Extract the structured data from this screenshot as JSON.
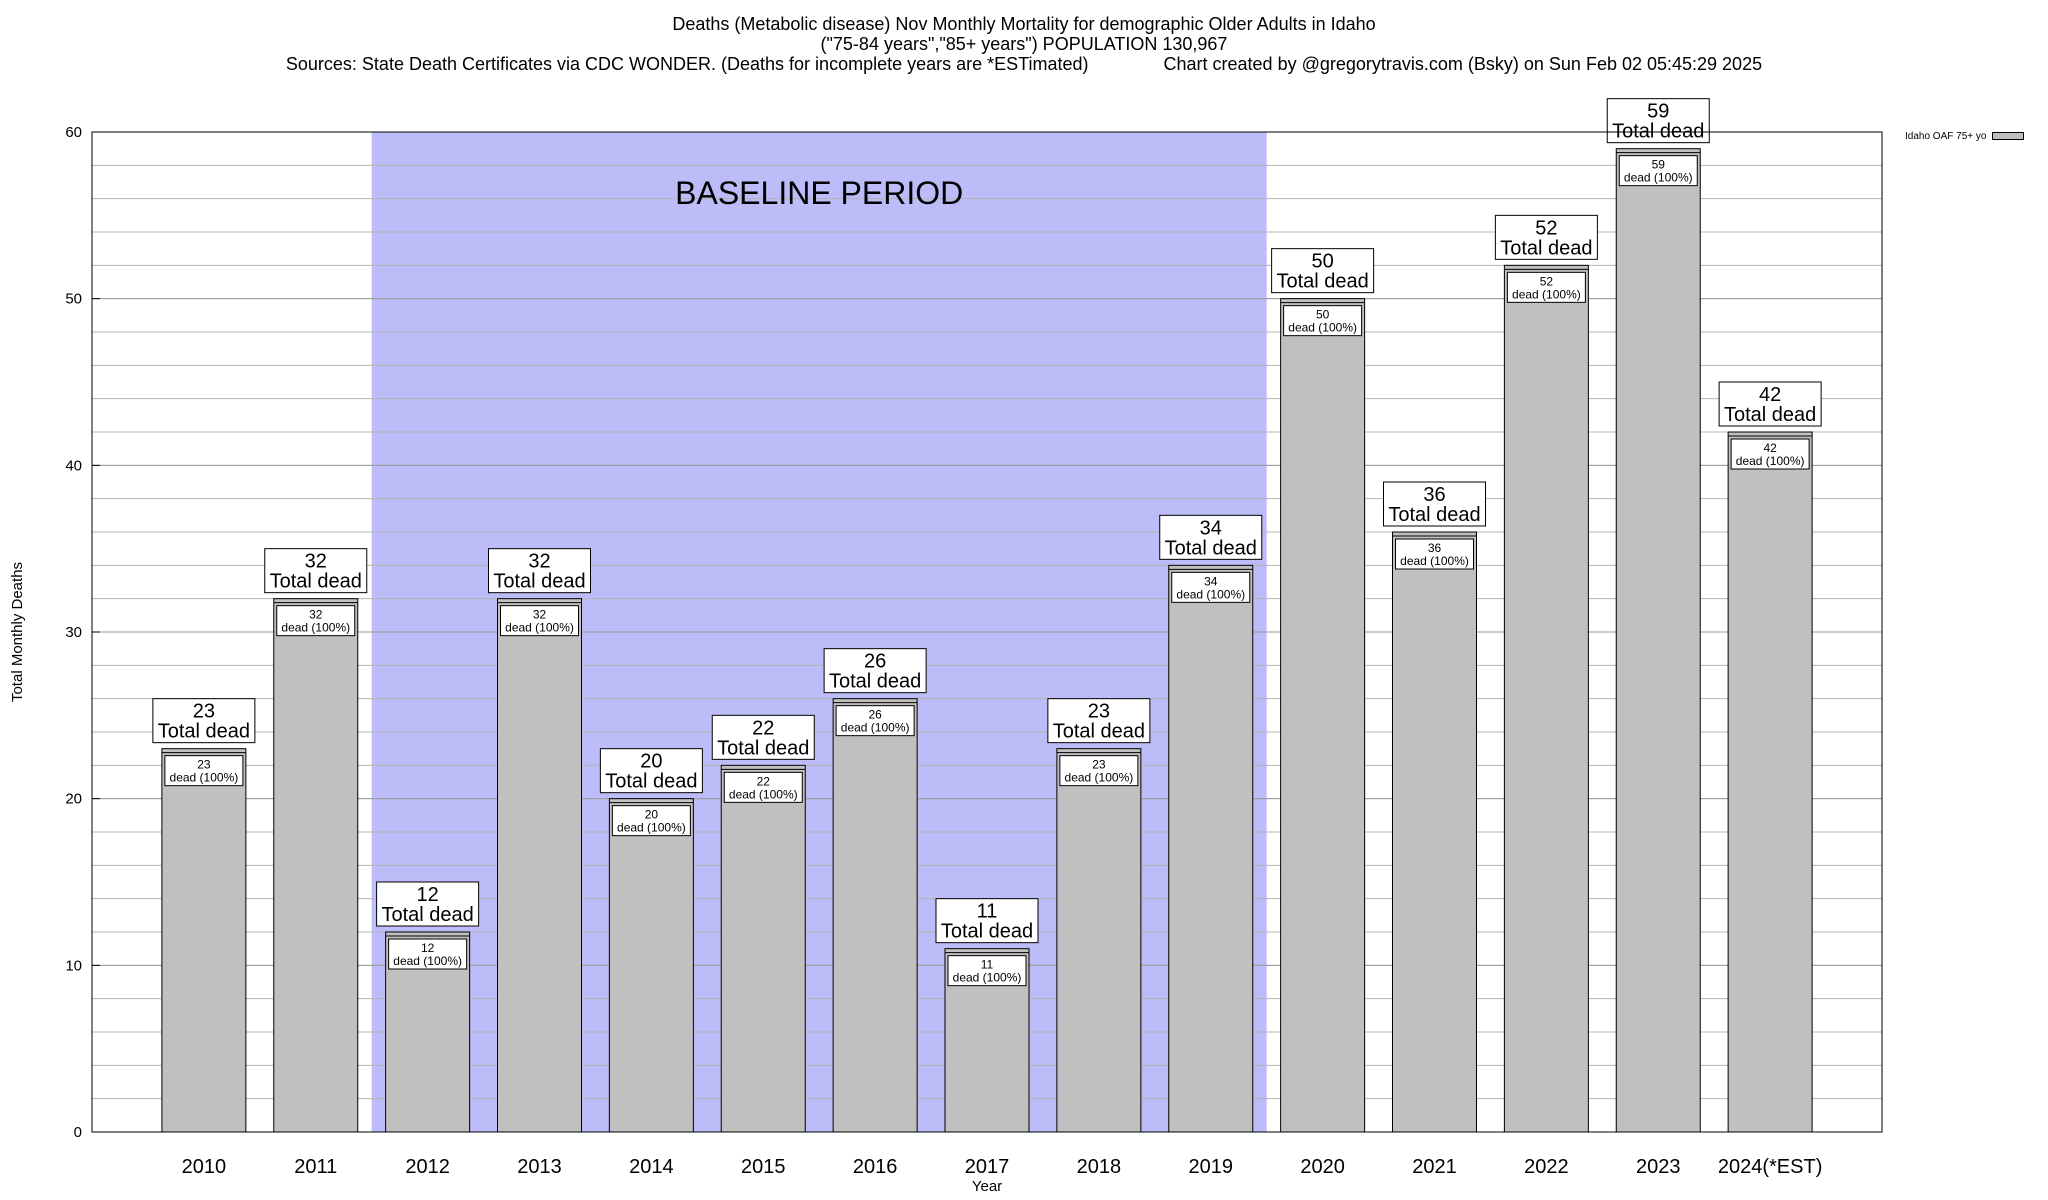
{
  "title": {
    "line1": "Deaths (Metabolic disease) Nov Monthly Mortality for demographic Older Adults in Idaho",
    "line2": "(\"75-84 years\",\"85+ years\") POPULATION 130,967",
    "line3": "Sources: State Death Certificates via CDC WONDER. (Deaths for incomplete years are *ESTimated)               Chart created by @gregorytravis.com (Bsky) on Sun Feb 02 05:45:29 2025"
  },
  "legend": {
    "label": "Idaho OAF 75+ yo"
  },
  "colors": {
    "bar": "#c0c0c0",
    "baseline": "#bcbcf8",
    "grid": "#b4b4b4"
  },
  "chart_data": {
    "type": "bar",
    "categories": [
      "2010",
      "2011",
      "2012",
      "2013",
      "2014",
      "2015",
      "2016",
      "2017",
      "2018",
      "2019",
      "2020",
      "2021",
      "2022",
      "2023",
      "2024(*EST)"
    ],
    "series": [
      {
        "name": "Idaho OAF 75+ yo",
        "values": [
          23,
          32,
          12,
          32,
          20,
          22,
          26,
          11,
          23,
          34,
          50,
          36,
          52,
          59,
          42
        ]
      }
    ],
    "xlabel": "Year",
    "ylabel": "Total Monthly Deaths",
    "ylim": [
      0,
      60
    ],
    "yticks": [
      0,
      10,
      20,
      30,
      40,
      50,
      60
    ],
    "grid": true,
    "legend_position": "top-right",
    "annotation": {
      "text": "BASELINE PERIOD",
      "from": "2012",
      "to": "2019"
    },
    "bar_label_total_suffix": "Total dead",
    "bar_label_inner_suffix": "dead (100%)"
  }
}
